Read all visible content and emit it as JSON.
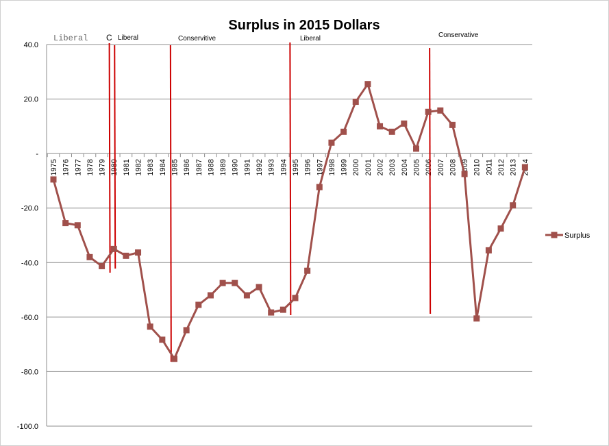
{
  "chart_data": {
    "type": "line",
    "title": "Surplus in 2015 Dollars",
    "xlabel": "",
    "ylabel": "",
    "ylim": [
      -100,
      40
    ],
    "yticks": [
      {
        "value": 40,
        "label": "40.0"
      },
      {
        "value": 20,
        "label": "20.0"
      },
      {
        "value": 0,
        "label": "-"
      },
      {
        "value": -20,
        "label": "-20.0"
      },
      {
        "value": -40,
        "label": "-40.0"
      },
      {
        "value": -60,
        "label": "-60.0"
      },
      {
        "value": -80,
        "label": "-80.0"
      },
      {
        "value": -100,
        "label": "-100.0"
      }
    ],
    "grid": true,
    "legend_position": "right",
    "categories": [
      "1975",
      "1976",
      "1977",
      "1978",
      "1979",
      "1980",
      "1981",
      "1982",
      "1983",
      "1984",
      "1985",
      "1986",
      "1987",
      "1988",
      "1989",
      "1990",
      "1991",
      "1992",
      "1993",
      "1994",
      "1995",
      "1996",
      "1997",
      "1998",
      "1999",
      "2000",
      "2001",
      "2002",
      "2003",
      "2004",
      "2005",
      "2006",
      "2007",
      "2008",
      "2009",
      "2010",
      "2011",
      "2012",
      "2013",
      "2014"
    ],
    "series": [
      {
        "name": "Surplus",
        "color": "#a0504b",
        "values": [
          -9.5,
          -25.5,
          -26.3,
          -38,
          -41.3,
          -35,
          -37.5,
          -36.3,
          -63.5,
          -68.3,
          -75.3,
          -64.8,
          -55.5,
          -52,
          -47.5,
          -47.5,
          -52,
          -49,
          -58.3,
          -57.3,
          -53,
          -43,
          -12.3,
          4,
          8,
          19,
          25.5,
          10,
          8,
          11,
          1.8,
          15.3,
          15.8,
          10.5,
          -7.5,
          -60.5,
          -35.5,
          -27.5,
          -19,
          -5
        ]
      }
    ],
    "annotations": [
      {
        "id": "liberal-1",
        "text": "Liberal",
        "at": "1975"
      },
      {
        "id": "c",
        "text": "C",
        "at": "1979"
      },
      {
        "id": "liberal-2",
        "text": "Liberal",
        "at": "1980"
      },
      {
        "id": "conservative-1",
        "text": "Conservitive",
        "at": "1985"
      },
      {
        "id": "liberal-3",
        "text": "Liberal",
        "at": "1995"
      },
      {
        "id": "conservative-2",
        "text": "Conservative",
        "at": "2006"
      }
    ],
    "dividers": [
      "1979",
      "1980",
      "1984",
      "1994",
      "2006"
    ],
    "divider_color": "#cc0000"
  }
}
